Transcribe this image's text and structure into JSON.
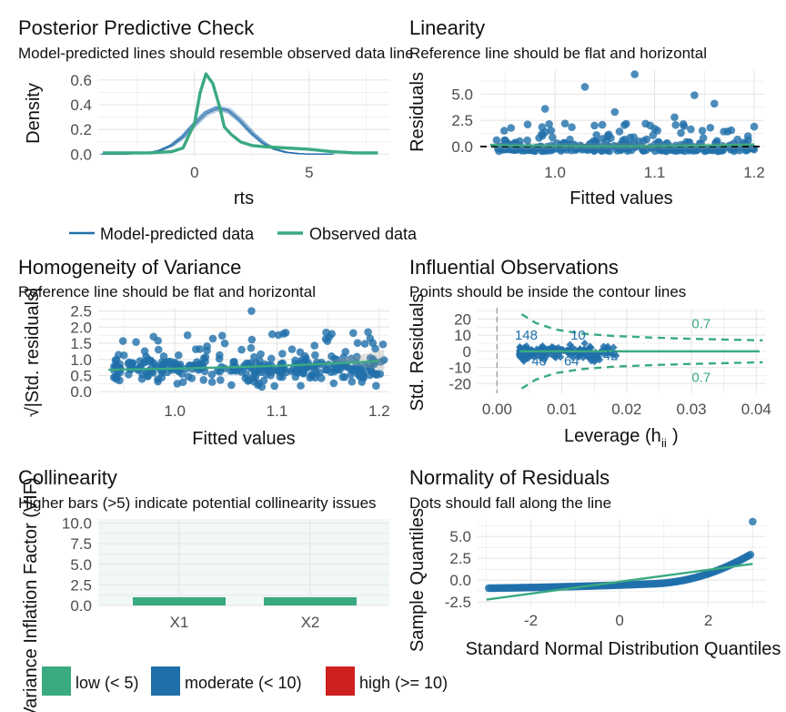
{
  "colors": {
    "blue": "#1f6faa",
    "green": "#3aaa80",
    "red": "#cd201f",
    "grid": "#e6e6e6",
    "ref": "#000000"
  },
  "chart_data": [
    {
      "type": "line",
      "id": "ppc",
      "title": "Posterior Predictive Check",
      "subtitle": "Model-predicted lines should resemble observed data line",
      "xlabel": "rts",
      "ylabel": "Density",
      "xlim": [
        -4.2,
        8.5
      ],
      "ylim": [
        -0.02,
        0.68
      ],
      "xticks": [
        "0",
        "5"
      ],
      "yticks": [
        "0.0",
        "0.2",
        "0.4",
        "0.6"
      ],
      "legend": [
        "Model-predicted data",
        "Observed data"
      ],
      "legend_position": "bottom",
      "series": [
        {
          "name": "Model-predicted data",
          "x": [
            -4,
            -3,
            -2,
            -1.5,
            -1,
            -0.5,
            0,
            0.5,
            1,
            1.5,
            2,
            2.5,
            3,
            3.5,
            4,
            4.5,
            5,
            6
          ],
          "y": [
            0.0,
            0.0,
            0.01,
            0.03,
            0.07,
            0.14,
            0.24,
            0.33,
            0.37,
            0.35,
            0.27,
            0.17,
            0.09,
            0.04,
            0.015,
            0.005,
            0.0,
            0.0
          ]
        },
        {
          "name": "Observed data",
          "x": [
            -4,
            -3,
            -2,
            -1,
            -0.5,
            0,
            0.25,
            0.5,
            0.8,
            1.1,
            1.3,
            1.6,
            2,
            2.5,
            3,
            4,
            5,
            6,
            7,
            8
          ],
          "y": [
            0.01,
            0.01,
            0.01,
            0.02,
            0.05,
            0.25,
            0.5,
            0.65,
            0.57,
            0.38,
            0.22,
            0.16,
            0.1,
            0.07,
            0.06,
            0.05,
            0.04,
            0.02,
            0.01,
            0.01
          ]
        }
      ]
    },
    {
      "type": "scatter",
      "id": "linearity",
      "title": "Linearity",
      "subtitle": "Reference line should be flat and horizontal",
      "xlabel": "Fitted values",
      "ylabel": "Residuals",
      "xlim": [
        0.925,
        1.21
      ],
      "ylim": [
        -0.7,
        7.3
      ],
      "xticks": [
        "1.0",
        "1.1",
        "1.2"
      ],
      "yticks": [
        "0.0",
        "2.5",
        "5.0"
      ],
      "reference_line": 0,
      "outliers": [
        [
          1.08,
          6.9
        ],
        [
          1.03,
          5.7
        ],
        [
          1.14,
          4.9
        ],
        [
          1.16,
          4.1
        ],
        [
          0.99,
          3.6
        ],
        [
          1.06,
          3.3
        ],
        [
          1.2,
          1.9
        ],
        [
          1.12,
          2.8
        ],
        [
          1.01,
          2.2
        ],
        [
          1.1,
          1.7
        ]
      ]
    },
    {
      "type": "scatter",
      "id": "homogeneity",
      "title": "Homogeneity of Variance",
      "subtitle": "Reference line should be flat and horizontal",
      "xlabel": "Fitted values",
      "ylabel": "√|Std. residuals|",
      "xlim": [
        0.925,
        1.21
      ],
      "ylim": [
        -0.05,
        2.6
      ],
      "xticks": [
        "1.0",
        "1.1",
        "1.2"
      ],
      "yticks": [
        "0.0",
        "0.5",
        "1.0",
        "1.5",
        "2.0",
        "2.5"
      ]
    },
    {
      "type": "scatter",
      "id": "influence",
      "title": "Influential Observations",
      "subtitle": "Points should be inside the contour lines",
      "xlabel": "Leverage (hii)",
      "ylabel": "Std. Residuals",
      "xlim": [
        -0.003,
        0.0415
      ],
      "ylim": [
        -26,
        27
      ],
      "xticks": [
        "0.00",
        "0.01",
        "0.02",
        "0.03",
        "0.04"
      ],
      "yticks": [
        "20",
        "10",
        "0",
        "-10",
        "-20"
      ],
      "labels": [
        "148",
        "10",
        "40",
        "64",
        "42"
      ],
      "contour_label": "0.7"
    },
    {
      "type": "bar",
      "id": "collinearity",
      "title": "Collinearity",
      "subtitle": "Higher bars (>5) indicate potential collinearity issues",
      "xlabel": "",
      "ylabel": "Variance Inflation Factor (VIF)",
      "categories": [
        "X1",
        "X2"
      ],
      "values": [
        1.0,
        1.0
      ],
      "ylim": [
        0,
        10.5
      ],
      "yticks": [
        "0.0",
        "2.5",
        "5.0",
        "7.5",
        "10.0"
      ],
      "legend": [
        "low (< 5)",
        "moderate (< 10)",
        "high (>= 10)"
      ],
      "legend_position": "bottom"
    },
    {
      "type": "scatter",
      "id": "normality",
      "title": "Normality of Residuals",
      "subtitle": "Dots should fall along the line",
      "xlabel": "Standard Normal Distribution Quantiles",
      "ylabel": "Sample Quantiles",
      "xlim": [
        -3.2,
        3.3
      ],
      "ylim": [
        -3.0,
        7.0
      ],
      "xticks": [
        "-2",
        "0",
        "2"
      ],
      "yticks": [
        "5.0",
        "2.5",
        "0.0",
        "-2.5"
      ],
      "reference_line": {
        "slope": 0.68,
        "intercept": -0.18
      }
    }
  ]
}
